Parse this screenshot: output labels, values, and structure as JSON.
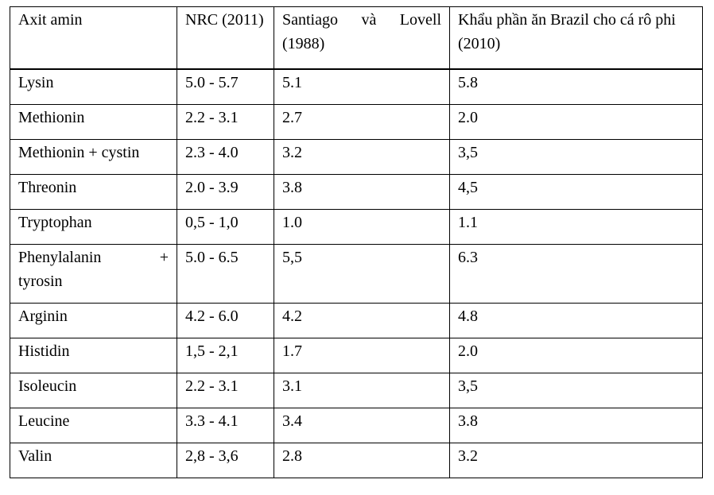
{
  "table": {
    "headers": [
      "Axit amin",
      "NRC (2011)",
      "Santiago và Lovell (1988)",
      "Khẩu phần ăn Brazil cho cá rô phi (2010)"
    ],
    "header_col3_line1": "Santiago và Lovell",
    "header_col3_line2": "(1988)",
    "row6_col1_word1": "Phenylalanin",
    "row6_col1_word2": "+",
    "row6_col1_word3": "tyrosin",
    "rows": [
      [
        "Lysin",
        "5.0 - 5.7",
        "5.1",
        "5.8"
      ],
      [
        "Methionin",
        "2.2 - 3.1",
        "2.7",
        "2.0"
      ],
      [
        "Methionin + cystin",
        "2.3 - 4.0",
        "3.2",
        "3,5"
      ],
      [
        "Threonin",
        "2.0 - 3.9",
        "3.8",
        "4,5"
      ],
      [
        "Tryptophan",
        "0,5 - 1,0",
        "1.0",
        "1.1"
      ],
      [
        "Phenylalanin + tyrosin",
        "5.0 - 6.5",
        "5,5",
        "6.3"
      ],
      [
        "Arginin",
        "4.2 - 6.0",
        "4.2",
        "4.8"
      ],
      [
        "Histidin",
        "1,5 - 2,1",
        "1.7",
        "2.0"
      ],
      [
        "Isoleucin",
        "2.2 - 3.1",
        "3.1",
        "3,5"
      ],
      [
        "Leucine",
        "3.3 - 4.1",
        "3.4",
        "3.8"
      ],
      [
        "Valin",
        "2,8 - 3,6",
        "2.8",
        "3.2"
      ]
    ]
  }
}
